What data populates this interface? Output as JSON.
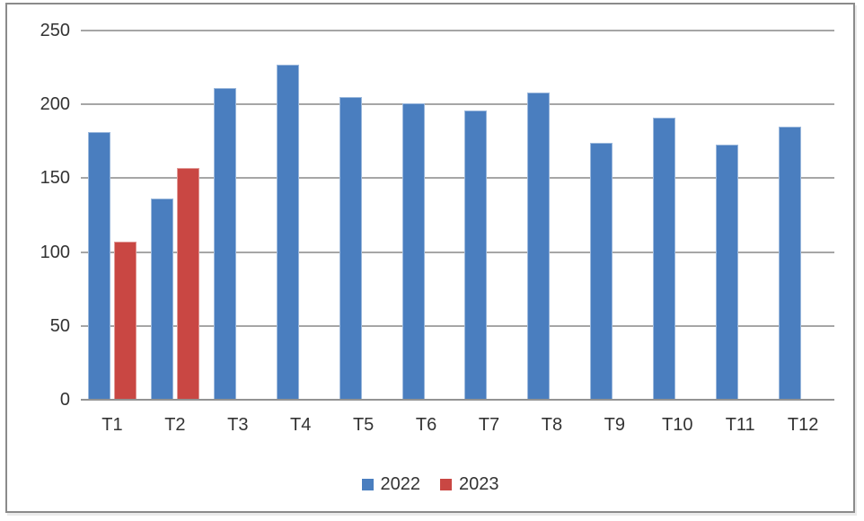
{
  "chart_data": {
    "type": "bar",
    "title": "",
    "xlabel": "",
    "ylabel": "",
    "categories": [
      "T1",
      "T2",
      "T3",
      "T4",
      "T5",
      "T6",
      "T7",
      "T8",
      "T9",
      "T10",
      "T11",
      "T12"
    ],
    "series": [
      {
        "name": "2022",
        "color": "#4A7EBF",
        "values": [
          181,
          136,
          211,
          227,
          205,
          201,
          196,
          208,
          174,
          191,
          173,
          185
        ]
      },
      {
        "name": "2023",
        "color": "#C94743",
        "values": [
          107,
          157,
          null,
          null,
          null,
          null,
          null,
          null,
          null,
          null,
          null,
          null
        ]
      }
    ],
    "ylim": [
      0,
      250
    ],
    "yticks": [
      0,
      50,
      100,
      150,
      200,
      250
    ],
    "grid": true,
    "legend_position": "bottom"
  },
  "colors": {
    "gridline": "#A6A6A6",
    "axis_line": "#939393",
    "frame_border": "#8B8B8B",
    "text": "#333333"
  }
}
